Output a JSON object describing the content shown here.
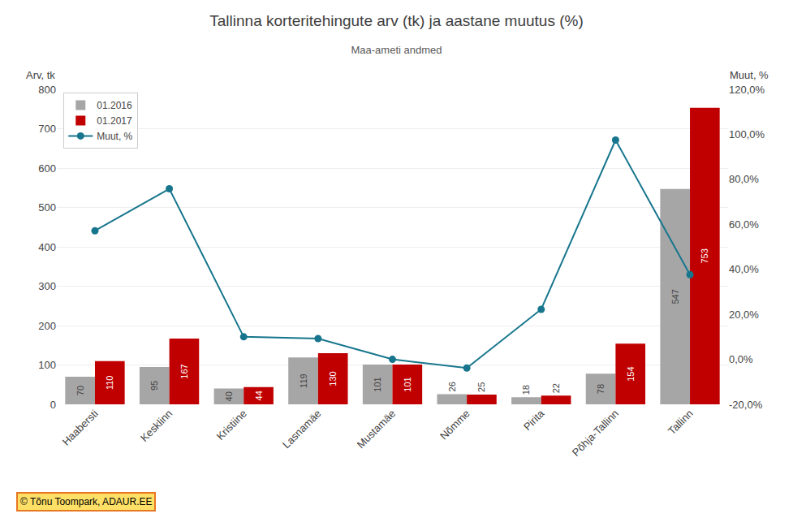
{
  "chart_data": {
    "type": "bar",
    "title": "Tallinna korteritehingute arv (tk) ja aastane muutus (%)",
    "subtitle": "Maa-ameti andmed",
    "ylabel": "Arv, tk",
    "y2label": "Muut, %",
    "categories": [
      "Haabersti",
      "Kesklinn",
      "Kristiine",
      "Lasnamäe",
      "Mustamäe",
      "Nõmme",
      "Pirita",
      "Põhja-Tallinn",
      "Tallinn"
    ],
    "series": [
      {
        "name": "01.2016",
        "color": "#a6a6a6",
        "values": [
          70,
          95,
          40,
          119,
          101,
          26,
          18,
          78,
          547
        ],
        "data_labels": true
      },
      {
        "name": "01.2017",
        "color": "#c00000",
        "values": [
          110,
          167,
          44,
          130,
          101,
          25,
          22,
          154,
          753
        ],
        "data_labels": true
      },
      {
        "name": "Muut, %",
        "type": "line",
        "axis": "y2",
        "color": "#17768d",
        "marker": "circle",
        "line_style": "solid",
        "values": [
          57.14,
          75.79,
          10.0,
          9.24,
          0.0,
          -3.85,
          22.22,
          97.44,
          37.66
        ]
      }
    ],
    "ylim": [
      0,
      800
    ],
    "yticks": [
      0,
      100,
      200,
      300,
      400,
      500,
      600,
      700,
      800
    ],
    "y2lim": [
      -20,
      120
    ],
    "y2ticks": [
      {
        "value": -20,
        "label": "-20,0%"
      },
      {
        "value": 0,
        "label": "0,0%"
      },
      {
        "value": 20,
        "label": "20,0%"
      },
      {
        "value": 40,
        "label": "40,0%"
      },
      {
        "value": 60,
        "label": "60,0%"
      },
      {
        "value": 80,
        "label": "80,0%"
      },
      {
        "value": 100,
        "label": "100,0%"
      },
      {
        "value": 120,
        "label": "120,0%"
      }
    ],
    "grid": true,
    "legend": "upper left",
    "annotations": [
      {
        "text": "© Tõnu Toompark, ADAUR.EE",
        "color": "#ffe066"
      }
    ]
  }
}
